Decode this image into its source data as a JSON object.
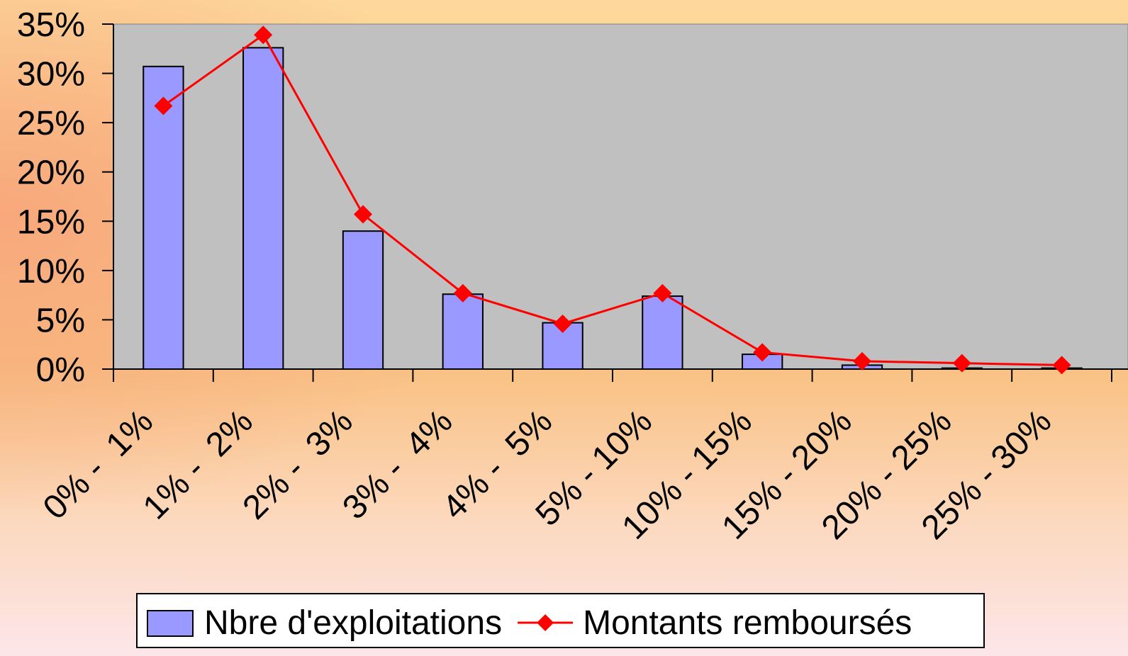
{
  "chart_data": {
    "type": "bar",
    "categories": [
      "0% -  1%",
      "1% -  2%",
      "2% -  3%",
      "3% -  4%",
      "4% -  5%",
      "5% - 10%",
      "10% - 15%",
      "15% - 20%",
      "20% - 25%",
      "25% - 30%"
    ],
    "series": [
      {
        "name": "Nbre d'exploitations",
        "type": "bar",
        "color": "#9999ff",
        "values": [
          30.7,
          32.6,
          14.0,
          7.6,
          4.7,
          7.4,
          1.5,
          0.4,
          0.1,
          0.1
        ]
      },
      {
        "name": "Montants remboursés",
        "type": "line",
        "color": "#ff0000",
        "values": [
          26.7,
          33.9,
          15.7,
          7.7,
          4.6,
          7.7,
          1.7,
          0.8,
          0.6,
          0.4
        ]
      }
    ],
    "ylim": [
      0,
      35
    ],
    "yticks": [
      {
        "value": 0,
        "label": "0%"
      },
      {
        "value": 5,
        "label": "5%"
      },
      {
        "value": 10,
        "label": "10%"
      },
      {
        "value": 15,
        "label": "15%"
      },
      {
        "value": 20,
        "label": "20%"
      },
      {
        "value": 25,
        "label": "25%"
      },
      {
        "value": 30,
        "label": "30%"
      },
      {
        "value": 35,
        "label": "35%"
      }
    ],
    "grid": false,
    "legend": "bottom"
  }
}
